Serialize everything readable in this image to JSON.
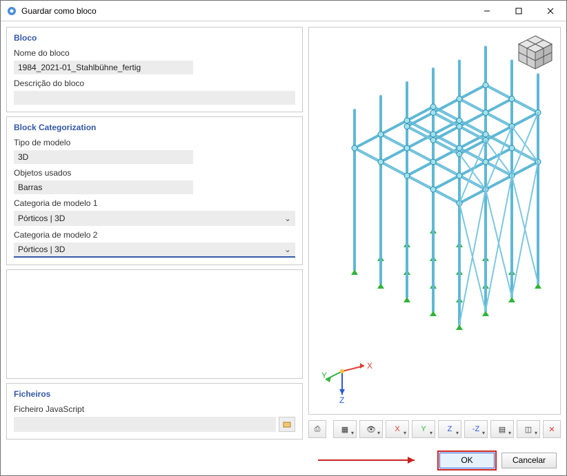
{
  "window": {
    "title": "Guardar como bloco"
  },
  "bloco": {
    "header": "Bloco",
    "name_label": "Nome do bloco",
    "name_value": "1984_2021-01_Stahlbühne_fertig",
    "desc_label": "Descrição do bloco",
    "desc_value": ""
  },
  "categorization": {
    "header": "Block Categorization",
    "model_type_label": "Tipo de modelo",
    "model_type_value": "3D",
    "objects_label": "Objetos usados",
    "objects_value": "Barras",
    "cat1_label": "Categoria de modelo 1",
    "cat1_value": "Pórticos | 3D",
    "cat2_label": "Categoria de modelo 2",
    "cat2_value": "Pórticos | 3D"
  },
  "files": {
    "header": "Ficheiros",
    "js_label": "Ficheiro JavaScript",
    "js_value": ""
  },
  "footer": {
    "ok": "OK",
    "cancel": "Cancelar"
  },
  "preview": {
    "axis_x_label": "X",
    "axis_y_label": "Y",
    "axis_z_label": "Z",
    "axis_colors": {
      "x": "#e23b2e",
      "y": "#2fb53a",
      "z": "#2a5bd7"
    },
    "structure": {
      "line_color": "#5fb8d6",
      "node_fill": "#9fe3ef",
      "node_stroke": "#2a8aa8",
      "brace_color": "#7cc7e0",
      "support_color": "#2fb53a"
    },
    "cornercube": {
      "face_light": "#e6e6e6",
      "face_mid": "#cfcfcf",
      "face_dark": "#b8b8b8",
      "edge": "#555555"
    }
  },
  "toolbar": {
    "buttons": [
      {
        "name": "tool-generic",
        "glyph": "⌂"
      },
      {
        "name": "tool-view-dd",
        "glyph": "▦"
      },
      {
        "name": "tool-eye-dd",
        "glyph": "👁"
      },
      {
        "name": "tool-x-dd",
        "glyph": "↧X"
      },
      {
        "name": "tool-y-dd",
        "glyph": "↧Y"
      },
      {
        "name": "tool-z-dd",
        "glyph": "↧Z"
      },
      {
        "name": "tool-negz-dd",
        "glyph": "↥Z"
      },
      {
        "name": "tool-layers-dd",
        "glyph": "▤"
      },
      {
        "name": "tool-cube-dd",
        "glyph": "◫"
      },
      {
        "name": "tool-target",
        "glyph": "✕"
      }
    ]
  }
}
